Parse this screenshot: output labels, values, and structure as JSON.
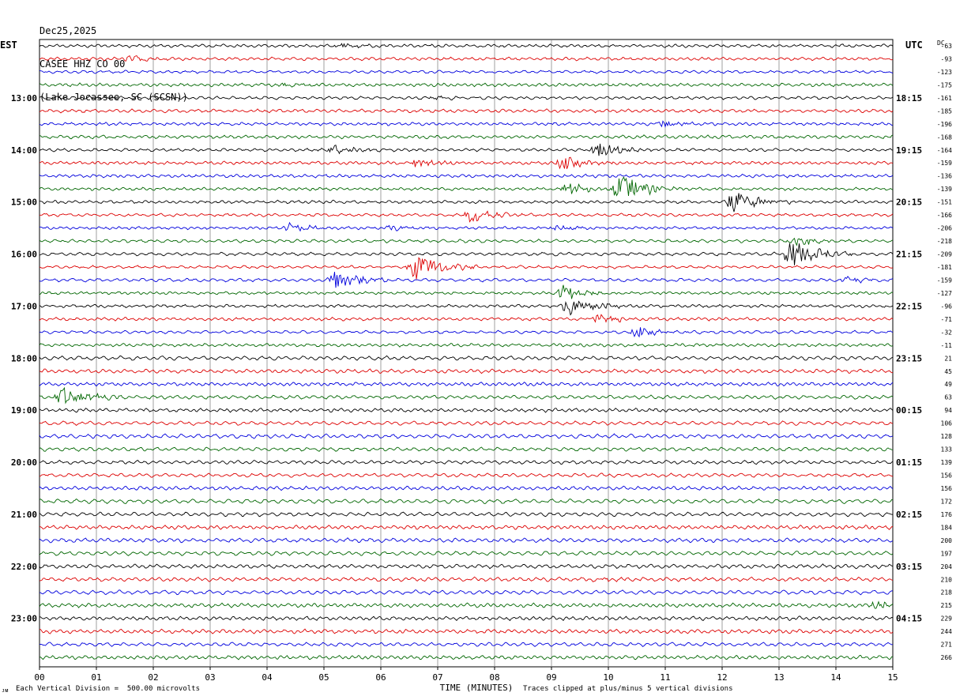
{
  "header": {
    "date": "Dec25,2025",
    "station": "CASEE HHZ CO 00",
    "location": "(Lake Jocassee, SC (SCSN))"
  },
  "left_tz": "EST",
  "right_tz": "UTC",
  "dc_label": "DC",
  "footer": {
    "division_note": "Each Vertical Division =  500.00 microvolts",
    "clip_note": "Traces clipped at plus/minus 5 vertical divisions",
    "corner_mark": "ᴊᴍ"
  },
  "chart_data": {
    "type": "line",
    "title": "CASEE HHZ CO 00",
    "xlabel": "TIME (MINUTES)",
    "ylabel": "",
    "x_ticks": [
      "00",
      "01",
      "02",
      "03",
      "04",
      "05",
      "06",
      "07",
      "08",
      "09",
      "10",
      "11",
      "12",
      "13",
      "14",
      "15"
    ],
    "xlim": [
      0,
      15
    ],
    "trace_colors": [
      "#000000",
      "#dd0000",
      "#0000dd",
      "#006600"
    ],
    "rows": 48,
    "left_hour_labels": [
      "13:00",
      "14:00",
      "15:00",
      "16:00",
      "17:00",
      "18:00",
      "19:00",
      "20:00",
      "21:00",
      "22:00",
      "23:00"
    ],
    "right_hour_labels": [
      "18:15",
      "19:15",
      "20:15",
      "21:15",
      "22:15",
      "23:15",
      "00:15",
      "01:15",
      "02:15",
      "03:15",
      "04:15"
    ],
    "dc_offsets": [
      "-63",
      "-93",
      "-123",
      "-175",
      "-161",
      "-185",
      "-196",
      "-168",
      "-164",
      "-159",
      "-136",
      "-139",
      "-151",
      "-166",
      "-206",
      "-218",
      "-209",
      "-181",
      "-159",
      "-127",
      "-96",
      "-71",
      "-32",
      "-11",
      "21",
      "45",
      "49",
      "63",
      "94",
      "106",
      "128",
      "133",
      "139",
      "156",
      "156",
      "172",
      "176",
      "184",
      "200",
      "197",
      "204",
      "210",
      "218",
      "215",
      "229",
      "244",
      "271",
      "266"
    ],
    "events": [
      {
        "row": 0,
        "minute": 5.3,
        "amp": 0.35
      },
      {
        "row": 1,
        "minute": 1.6,
        "amp": 0.5
      },
      {
        "row": 3,
        "minute": 4.3,
        "amp": 0.35
      },
      {
        "row": 4,
        "minute": 7.0,
        "amp": 0.25
      },
      {
        "row": 6,
        "minute": 11.0,
        "amp": 0.6
      },
      {
        "row": 8,
        "minute": 5.2,
        "amp": 0.9
      },
      {
        "row": 8,
        "minute": 9.8,
        "amp": 1.2
      },
      {
        "row": 9,
        "minute": 6.6,
        "amp": 0.8
      },
      {
        "row": 9,
        "minute": 9.2,
        "amp": 1.0
      },
      {
        "row": 11,
        "minute": 9.3,
        "amp": 1.0
      },
      {
        "row": 11,
        "minute": 10.2,
        "amp": 2.2
      },
      {
        "row": 12,
        "minute": 12.2,
        "amp": 1.8
      },
      {
        "row": 13,
        "minute": 7.6,
        "amp": 1.3
      },
      {
        "row": 14,
        "minute": 4.4,
        "amp": 0.7
      },
      {
        "row": 14,
        "minute": 6.2,
        "amp": 0.4
      },
      {
        "row": 14,
        "minute": 9.1,
        "amp": 0.4
      },
      {
        "row": 15,
        "minute": 13.3,
        "amp": 0.9
      },
      {
        "row": 16,
        "minute": 13.2,
        "amp": 2.2
      },
      {
        "row": 17,
        "minute": 6.6,
        "amp": 2.2
      },
      {
        "row": 18,
        "minute": 5.2,
        "amp": 1.6
      },
      {
        "row": 18,
        "minute": 14.2,
        "amp": 0.5
      },
      {
        "row": 19,
        "minute": 9.2,
        "amp": 1.2
      },
      {
        "row": 20,
        "minute": 9.3,
        "amp": 1.5
      },
      {
        "row": 21,
        "minute": 9.8,
        "amp": 0.9
      },
      {
        "row": 22,
        "minute": 10.5,
        "amp": 0.8
      },
      {
        "row": 27,
        "minute": 0.4,
        "amp": 1.6
      },
      {
        "row": 41,
        "minute": 9.8,
        "amp": 0.3
      },
      {
        "row": 43,
        "minute": 14.7,
        "amp": 0.5
      }
    ]
  }
}
